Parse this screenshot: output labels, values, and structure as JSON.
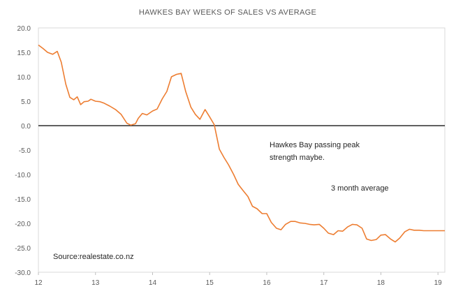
{
  "chart_data": {
    "type": "line",
    "title": "HAWKES BAY WEEKS OF SALES VS AVERAGE",
    "xlabel": "",
    "ylabel": "",
    "x_tick_labels": [
      "12",
      "13",
      "14",
      "15",
      "16",
      "17",
      "18",
      "19"
    ],
    "x_range": [
      12,
      19.12
    ],
    "y_tick_labels": [
      "20.0",
      "15.0",
      "10.0",
      "5.0",
      "0.0",
      "-5.0",
      "-10.0",
      "-15.0",
      "-20.0",
      "-25.0",
      "-30.0"
    ],
    "ylim": [
      -30,
      20
    ],
    "grid": false,
    "zero_line": true,
    "line_color": "#ED7D31",
    "annotations": [
      {
        "text": "Hawkes Bay passing peak"
      },
      {
        "text": "strength maybe."
      },
      {
        "text": "3 month average"
      },
      {
        "text": "Source:realestate.co.nz"
      }
    ],
    "series": [
      {
        "x": [
          12.0,
          12.08,
          12.16,
          12.25,
          12.33,
          12.4,
          12.48,
          12.55,
          12.62,
          12.68,
          12.74,
          12.8,
          12.87,
          12.92,
          13.0,
          13.08,
          13.15,
          13.25,
          13.35,
          13.45,
          13.55,
          13.62,
          13.7,
          13.75,
          13.82,
          13.9,
          14.0,
          14.08,
          14.17,
          14.25,
          14.33,
          14.42,
          14.5,
          14.58,
          14.67,
          14.75,
          14.83,
          14.92,
          15.0,
          15.08,
          15.17,
          15.25,
          15.33,
          15.42,
          15.5,
          15.58,
          15.67,
          15.75,
          15.83,
          15.92,
          16.0,
          16.08,
          16.17,
          16.25,
          16.33,
          16.42,
          16.5,
          16.58,
          16.67,
          16.75,
          16.83,
          16.92,
          17.0,
          17.08,
          17.17,
          17.25,
          17.33,
          17.42,
          17.5,
          17.58,
          17.67,
          17.75,
          17.83,
          17.92,
          18.0,
          18.08,
          18.17,
          18.25,
          18.33,
          18.42,
          18.5,
          18.58,
          18.67,
          18.75,
          18.83,
          18.92,
          19.0,
          19.08,
          19.12
        ],
        "values": [
          16.5,
          15.8,
          15.0,
          14.6,
          15.2,
          13.0,
          8.5,
          5.8,
          5.3,
          5.9,
          4.3,
          4.9,
          5.0,
          5.4,
          5.0,
          4.9,
          4.6,
          4.0,
          3.3,
          2.3,
          0.5,
          0.1,
          0.4,
          1.5,
          2.5,
          2.2,
          3.0,
          3.4,
          5.5,
          7.0,
          10.0,
          10.5,
          10.7,
          7.0,
          3.8,
          2.3,
          1.3,
          3.3,
          1.8,
          0.2,
          -4.8,
          -6.5,
          -8.0,
          -10.0,
          -12.0,
          -13.2,
          -14.5,
          -16.5,
          -17.0,
          -18.0,
          -18.0,
          -19.8,
          -21.0,
          -21.3,
          -20.2,
          -19.6,
          -19.6,
          -19.9,
          -20.0,
          -20.2,
          -20.3,
          -20.2,
          -21.0,
          -22.0,
          -22.3,
          -21.5,
          -21.6,
          -20.7,
          -20.2,
          -20.3,
          -21.0,
          -23.2,
          -23.5,
          -23.3,
          -22.4,
          -22.3,
          -23.2,
          -23.8,
          -23.0,
          -21.7,
          -21.2,
          -21.4,
          -21.4,
          -21.5,
          -21.5,
          -21.5,
          -21.5,
          -21.5,
          -21.5
        ]
      }
    ]
  }
}
